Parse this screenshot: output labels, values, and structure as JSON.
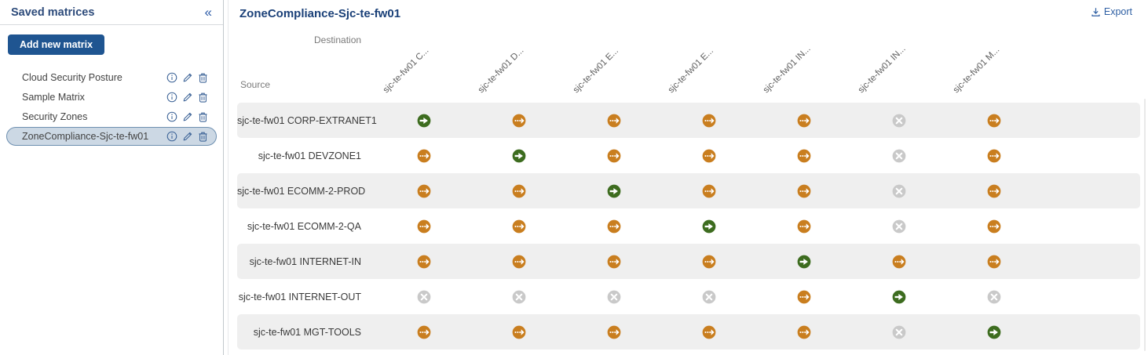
{
  "sidebar": {
    "title": "Saved matrices",
    "collapse_icon": "«",
    "add_button_label": "Add new matrix",
    "items": [
      {
        "label": "Cloud Security Posture",
        "selected": false
      },
      {
        "label": "Sample Matrix",
        "selected": false
      },
      {
        "label": "Security Zones",
        "selected": false
      },
      {
        "label": "ZoneCompliance-Sjc-te-fw01",
        "selected": true
      }
    ]
  },
  "main": {
    "title": "ZoneCompliance-Sjc-te-fw01",
    "export_label": "Export",
    "matrix": {
      "destination_axis_label": "Destination",
      "source_axis_label": "Source",
      "column_headers": [
        "sjc-te-fw01 C...",
        "sjc-te-fw01 D...",
        "sjc-te-fw01 E...",
        "sjc-te-fw01 E...",
        "sjc-te-fw01 IN...",
        "sjc-te-fw01 IN...",
        "sjc-te-fw01 M..."
      ],
      "rows": [
        {
          "label": "sjc-te-fw01 CORP-EXTRANET1",
          "cells": [
            "allowed",
            "restricted",
            "restricted",
            "restricted",
            "restricted",
            "blocked",
            "restricted"
          ]
        },
        {
          "label": "sjc-te-fw01 DEVZONE1",
          "cells": [
            "restricted",
            "allowed",
            "restricted",
            "restricted",
            "restricted",
            "blocked",
            "restricted"
          ]
        },
        {
          "label": "sjc-te-fw01 ECOMM-2-PROD",
          "cells": [
            "restricted",
            "restricted",
            "allowed",
            "restricted",
            "restricted",
            "blocked",
            "restricted"
          ]
        },
        {
          "label": "sjc-te-fw01 ECOMM-2-QA",
          "cells": [
            "restricted",
            "restricted",
            "restricted",
            "allowed",
            "restricted",
            "blocked",
            "restricted"
          ]
        },
        {
          "label": "sjc-te-fw01 INTERNET-IN",
          "cells": [
            "restricted",
            "restricted",
            "restricted",
            "restricted",
            "allowed",
            "restricted",
            "restricted"
          ]
        },
        {
          "label": "sjc-te-fw01 INTERNET-OUT",
          "cells": [
            "blocked",
            "blocked",
            "blocked",
            "blocked",
            "restricted",
            "allowed",
            "blocked"
          ]
        },
        {
          "label": "sjc-te-fw01 MGT-TOOLS",
          "cells": [
            "restricted",
            "restricted",
            "restricted",
            "restricted",
            "restricted",
            "blocked",
            "allowed"
          ]
        }
      ]
    }
  },
  "colors": {
    "allowed_green": "#3d6c1f",
    "restricted_orange": "#c97e1f",
    "blocked_gray": "#c9c9c9",
    "button_blue": "#1f5591",
    "link_blue": "#2e5fa3",
    "sidebar_icon_blue": "#3c6397",
    "selected_item_bg": "#ccd8e4",
    "stripe_gray": "#efefef"
  }
}
